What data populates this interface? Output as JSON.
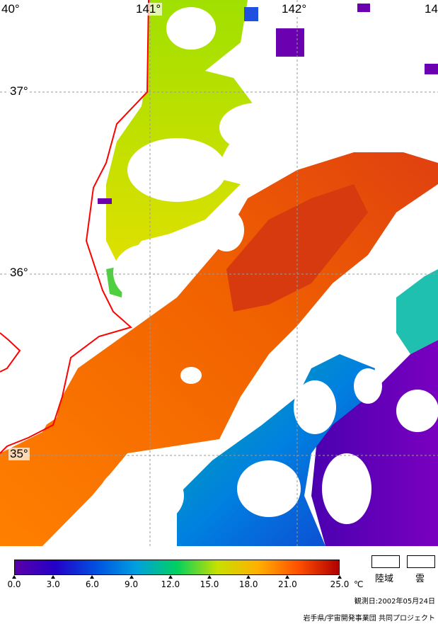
{
  "map": {
    "longitude_labels": [
      "40°",
      "141°",
      "142°",
      "14"
    ],
    "latitude_labels": [
      "37°",
      "36°",
      "35°"
    ],
    "coast_color": "#ff0000",
    "grid_color": "#9a9a9a",
    "land_fill": "#ffffff",
    "cloud_fill": "#ffffff"
  },
  "colorbar": {
    "min": 0.0,
    "max": 25.0,
    "tick_labels": [
      "0.0",
      "3.0",
      "6.0",
      "9.0",
      "12.0",
      "15.0",
      "18.0",
      "21.0",
      "25.0"
    ],
    "unit": "℃",
    "colors": [
      "#5a00a8",
      "#2400c8",
      "#0050e0",
      "#00a0e0",
      "#00d060",
      "#c8e000",
      "#ffb000",
      "#ff5000",
      "#b00000"
    ]
  },
  "legend": {
    "land_label": "陸域",
    "cloud_label": "雲"
  },
  "footer": {
    "observation_date": "観測日:2002年05月24日",
    "credit": "岩手県/宇宙開発事業団 共同プロジェクト"
  }
}
